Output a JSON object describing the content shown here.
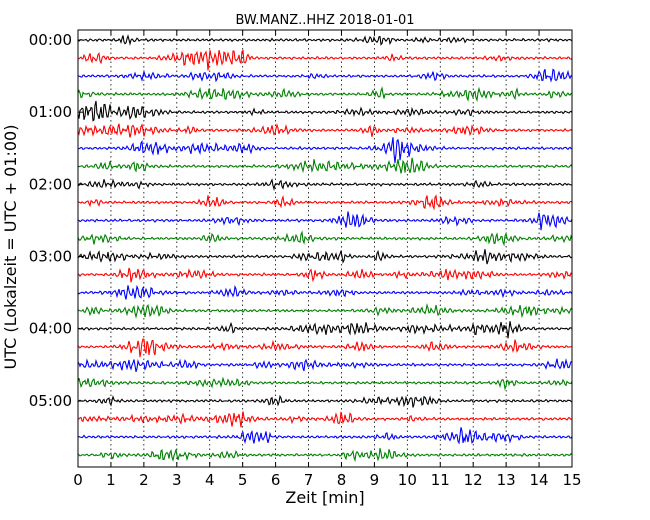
{
  "chart_data": {
    "type": "line",
    "title": "BW.MANZ..HHZ 2018-01-01",
    "xlabel": "Zeit  [min]",
    "ylabel": "UTC (Lokalzeit = UTC + 01:00)",
    "xlim": [
      0,
      15
    ],
    "x_ticks": [
      "0",
      "1",
      "2",
      "3",
      "4",
      "5",
      "6",
      "7",
      "8",
      "9",
      "10",
      "11",
      "12",
      "13",
      "14",
      "15"
    ],
    "y_tick_labels": [
      "00:00",
      "01:00",
      "02:00",
      "03:00",
      "04:00",
      "05:00"
    ],
    "trace_count": 24,
    "trace_interval_min": 15,
    "trace_colors": [
      "#000000",
      "#ff0000",
      "#0000ff",
      "#008000"
    ],
    "vertical_grid": "dotted",
    "legend": "none"
  }
}
